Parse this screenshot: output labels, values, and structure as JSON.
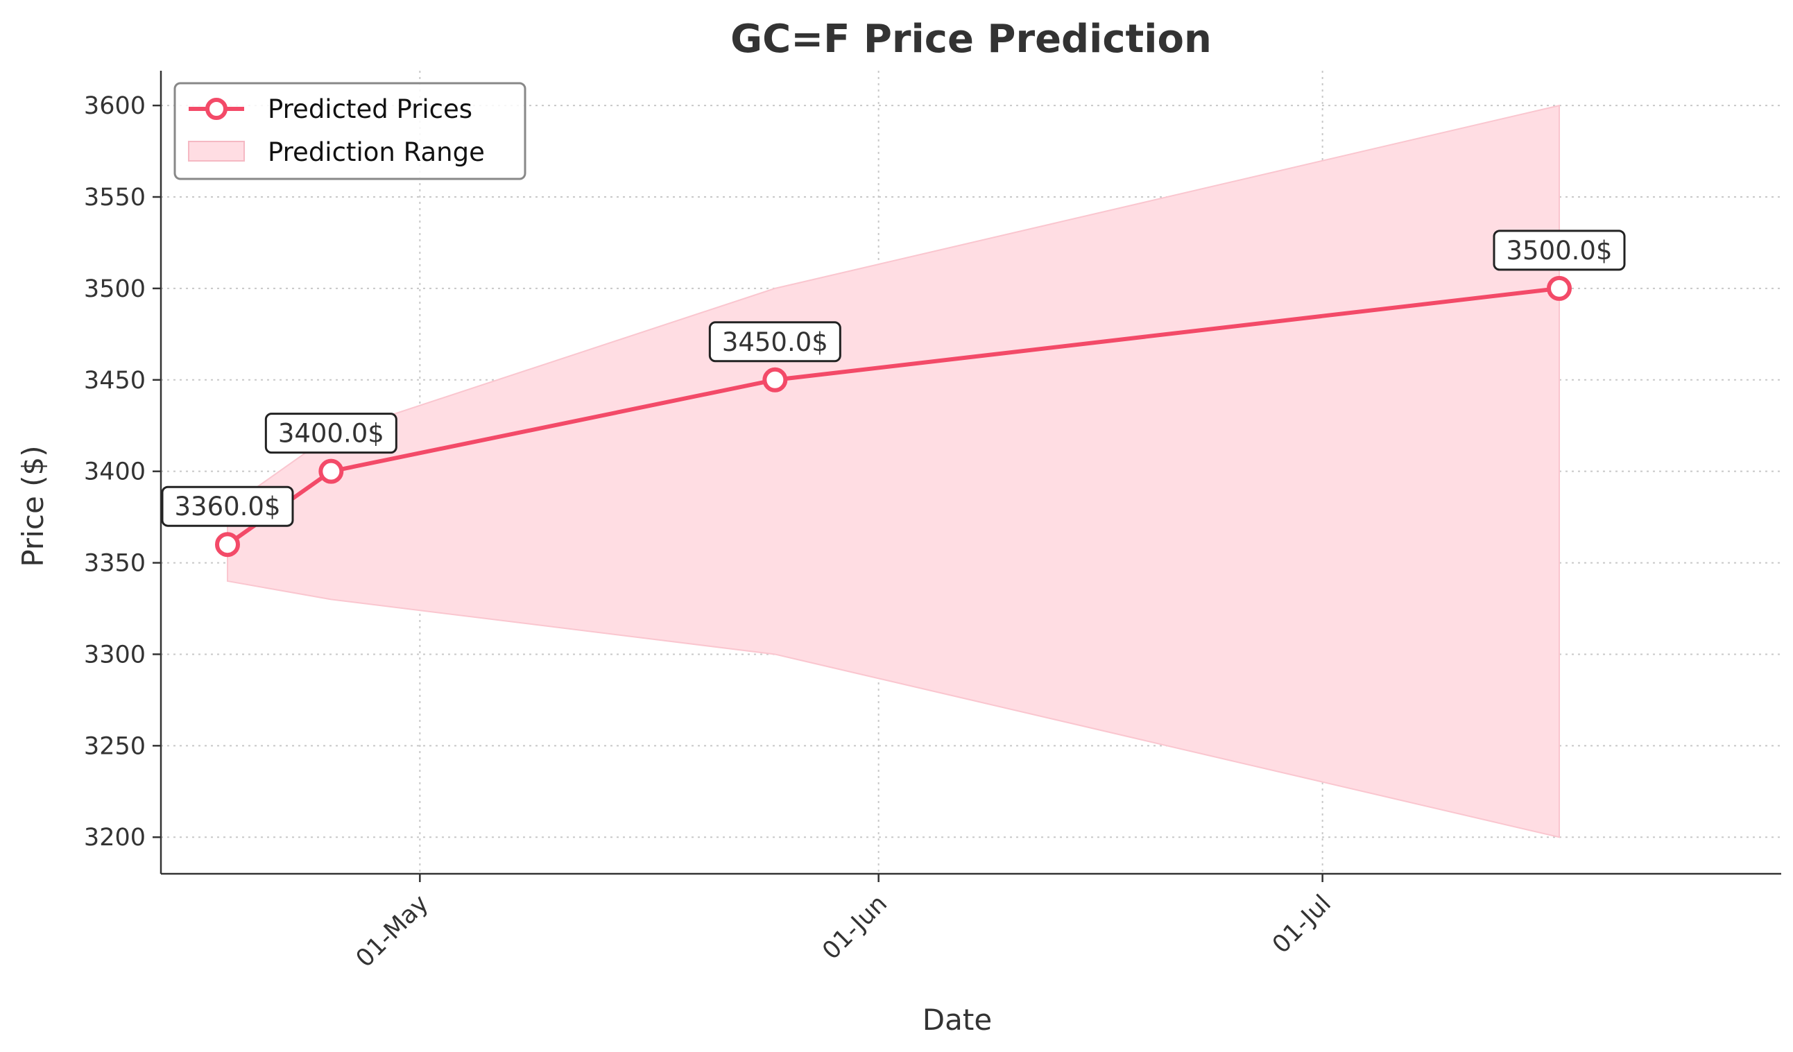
{
  "chart_data": {
    "type": "line",
    "title": "GC=F Price Prediction",
    "xlabel": "Date",
    "ylabel": "Price ($)",
    "x": [
      "2025-04-18",
      "2025-04-25",
      "2025-05-25",
      "2025-07-17"
    ],
    "series": [
      {
        "name": "Predicted Prices",
        "values": [
          3360.0,
          3400.0,
          3450.0,
          3500.0
        ],
        "color": "#f34a68"
      }
    ],
    "range": {
      "name": "Prediction Range",
      "lower": [
        3340,
        3330,
        3300,
        3200
      ],
      "upper": [
        3380,
        3420,
        3500,
        3600
      ],
      "color": "#ffdde3"
    },
    "annotations": [
      "3360.0$",
      "3400.0$",
      "3450.0$",
      "3500.0$"
    ],
    "xticks": [
      {
        "date": "2025-05-01",
        "label": "01-May"
      },
      {
        "date": "2025-06-01",
        "label": "01-Jun"
      },
      {
        "date": "2025-07-01",
        "label": "01-Jul"
      }
    ],
    "yticks": [
      3200,
      3250,
      3300,
      3350,
      3400,
      3450,
      3500,
      3550,
      3600
    ],
    "xlim": [
      "2025-04-13.5",
      "2025-08-01"
    ],
    "ylim": [
      3180,
      3619
    ],
    "grid": true,
    "legend_position": "top-left"
  }
}
